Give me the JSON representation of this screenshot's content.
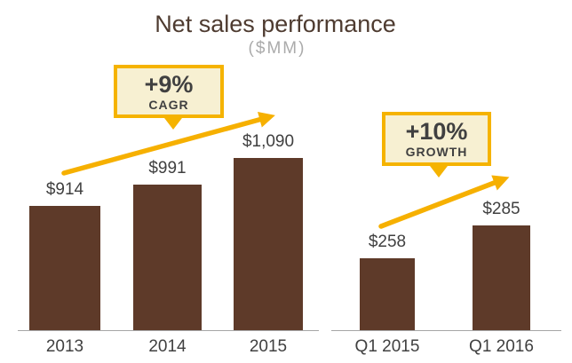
{
  "colors": {
    "bar": "#5E3A29",
    "gold_arrow": "#F6B000",
    "callout_border": "#F5B300",
    "callout_fill": "#F7F0D2",
    "title_text": "#4E3B30",
    "subtitle_text": "#ABABAB",
    "label_text": "#404040",
    "axis_line": "#A6A6A6",
    "background": "#FFFFFF"
  },
  "chart_data": {
    "type": "bar",
    "title": "Net sales performance",
    "subtitle": "($MM)",
    "unit": "$MM",
    "grid": false,
    "legend": false,
    "groups": [
      {
        "name": "annual",
        "categories": [
          "2013",
          "2014",
          "2015"
        ],
        "values": [
          914,
          991,
          1090
        ],
        "value_labels": [
          "$914",
          "$991",
          "$1,090"
        ],
        "ylim": [
          460,
          1090
        ],
        "annotation": {
          "badge": "+9%",
          "label": "CAGR"
        }
      },
      {
        "name": "quarterly",
        "categories": [
          "Q1 2015",
          "Q1 2016"
        ],
        "values": [
          258,
          285
        ],
        "value_labels": [
          "$258",
          "$285"
        ],
        "ylim": [
          200,
          285
        ],
        "annotation": {
          "badge": "+10%",
          "label": "GROWTH"
        }
      }
    ]
  }
}
